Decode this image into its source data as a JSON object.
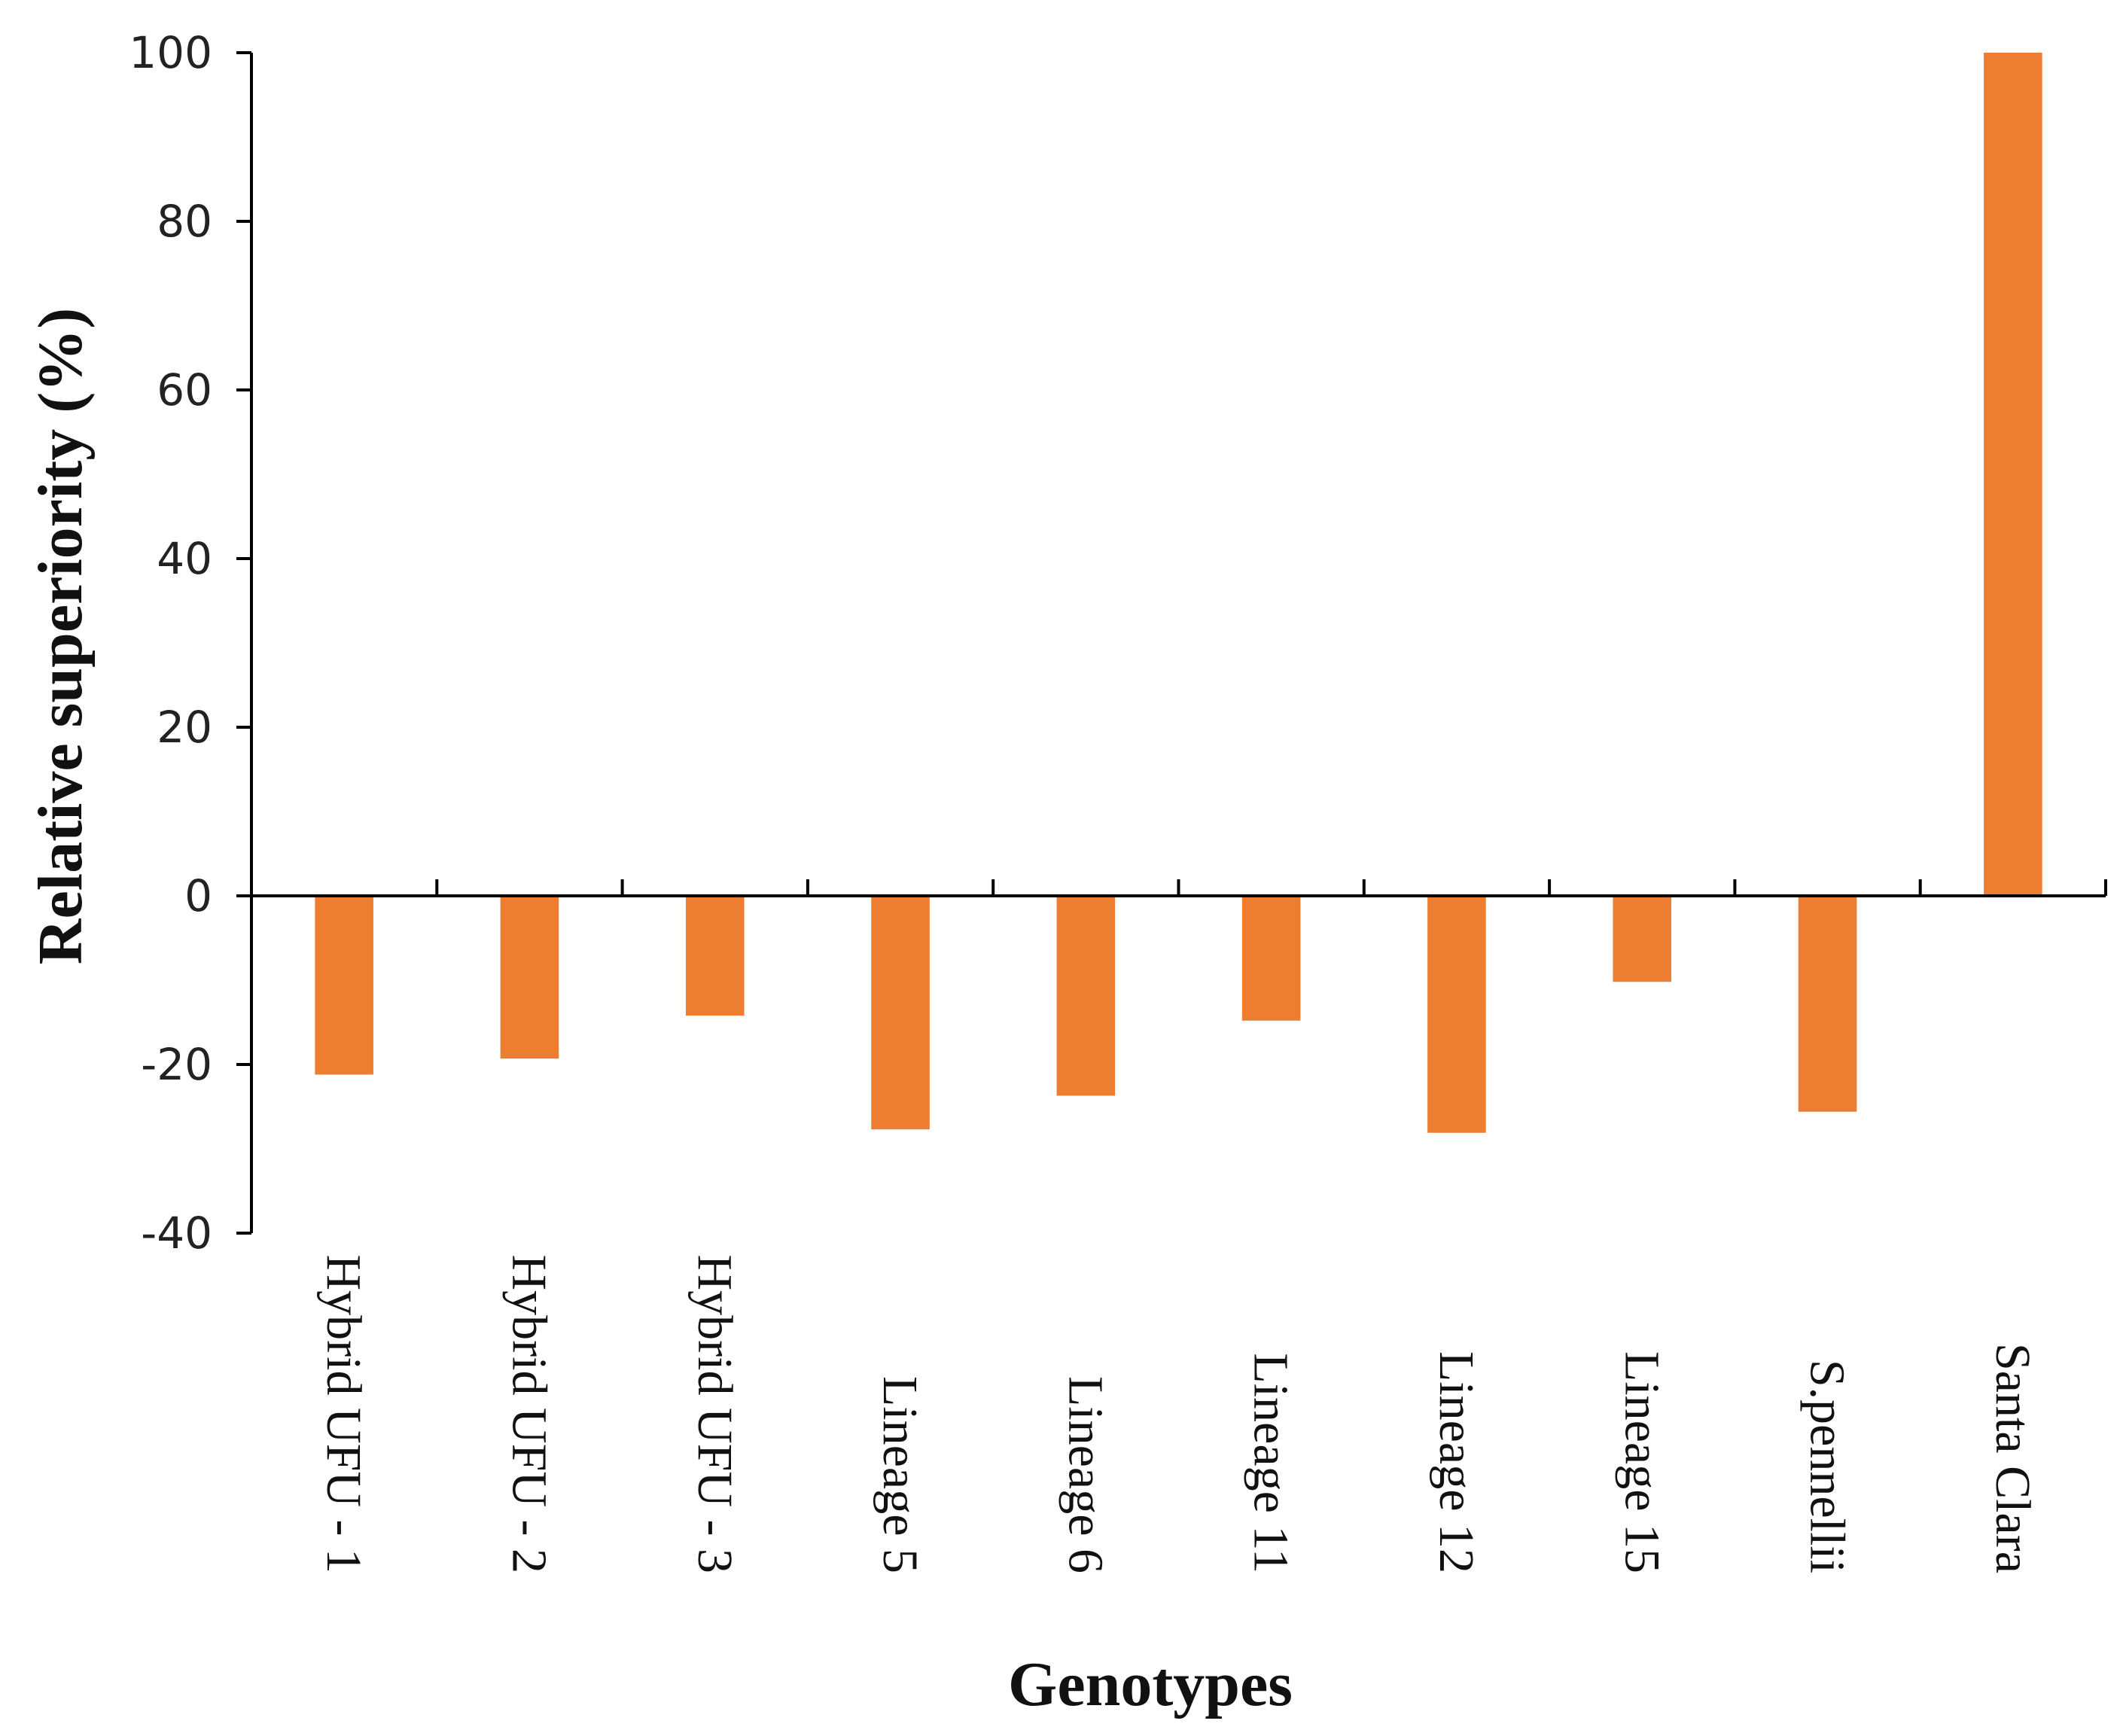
{
  "chart_data": {
    "type": "bar",
    "title": "",
    "xlabel": "Genotypes",
    "ylabel": "Relative superiority (%)",
    "ylim": [
      -40,
      100
    ],
    "yticks": [
      -40,
      -20,
      0,
      20,
      40,
      60,
      80,
      100
    ],
    "grid": false,
    "legend": "none",
    "categories": [
      "Hybrid UFU - 1",
      "Hybrid UFU - 2",
      "Hybrid UFU - 3",
      "Lineage 5",
      "Lineage 6",
      "Lineage 11",
      "Lineage 12",
      "Lineage 15",
      "S.pennellii",
      "Santa Clara"
    ],
    "series": [
      {
        "name": "Relative superiority",
        "values": [
          -21.2,
          -19.3,
          -14.2,
          -27.7,
          -23.7,
          -14.8,
          -28.1,
          -10.2,
          -25.6,
          100
        ],
        "color": "#ED7D31"
      }
    ],
    "colors": {
      "bar": "#ED7D31",
      "axis": "#000000"
    }
  }
}
